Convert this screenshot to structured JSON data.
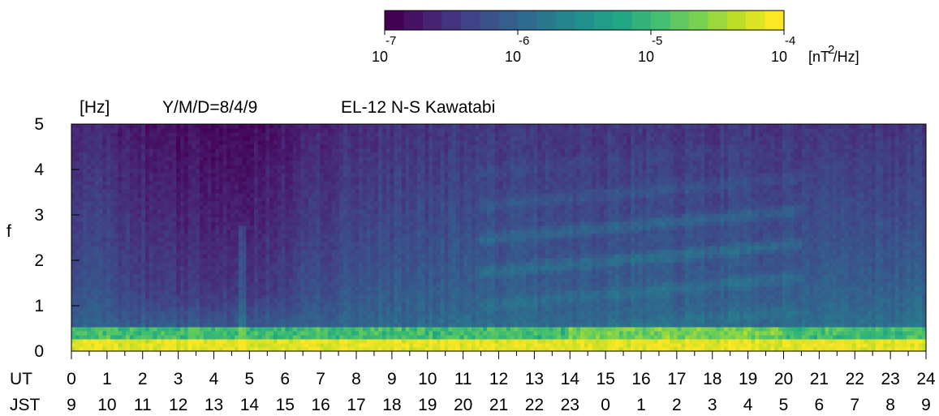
{
  "chart_data": {
    "type": "heatmap",
    "header": {
      "unit": "[Hz]",
      "date": "Y/M/D=8/4/9",
      "station": "EL-12 N-S Kawatabi"
    },
    "ylabel": "f",
    "ylim": [
      0,
      5
    ],
    "y_ticks": [
      "0",
      "1",
      "2",
      "3",
      "4",
      "5"
    ],
    "x_rows": [
      {
        "label": "UT",
        "ticks": [
          "0",
          "1",
          "2",
          "3",
          "4",
          "5",
          "6",
          "7",
          "8",
          "9",
          "10",
          "11",
          "12",
          "13",
          "14",
          "15",
          "16",
          "17",
          "18",
          "19",
          "20",
          "21",
          "22",
          "23",
          "24"
        ]
      },
      {
        "label": "JST",
        "ticks": [
          "9",
          "10",
          "11",
          "12",
          "13",
          "14",
          "15",
          "16",
          "17",
          "18",
          "19",
          "20",
          "21",
          "22",
          "23",
          "0",
          "1",
          "2",
          "3",
          "4",
          "5",
          "6",
          "7",
          "8",
          "9"
        ]
      }
    ],
    "xlim": [
      0,
      24
    ],
    "colorbar": {
      "unit": "[nT /Hz]",
      "unit_sup": "2",
      "tick_base": "10",
      "tick_exponents": [
        "-7",
        "-6",
        "-5",
        "-4"
      ],
      "log_range": [
        -7,
        -4
      ],
      "colormap": "viridis"
    }
  }
}
